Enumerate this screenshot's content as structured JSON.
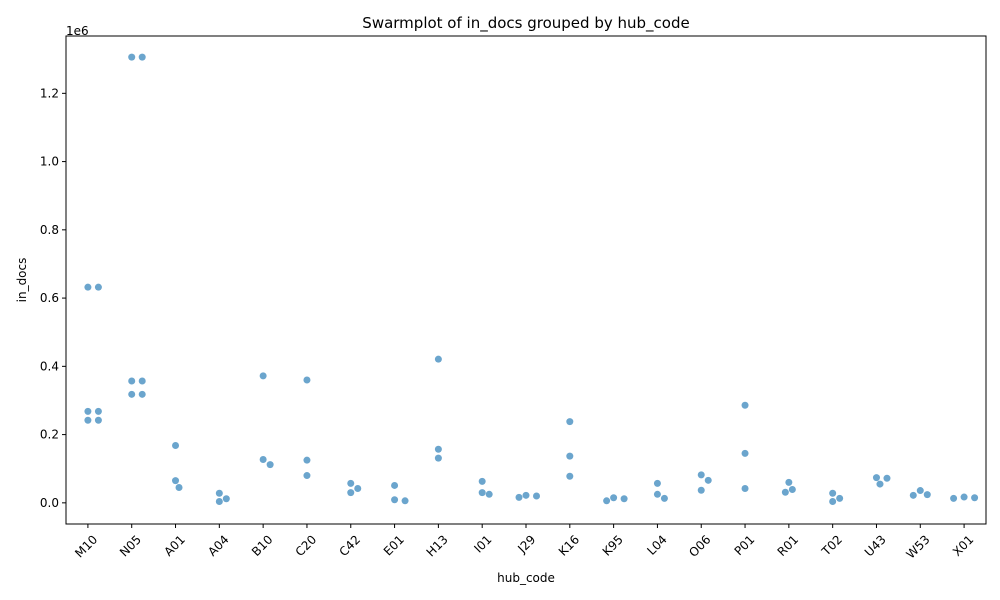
{
  "chart_data": {
    "type": "scatter",
    "subtype": "swarm",
    "title": "Swarmplot of in_docs grouped by hub_code",
    "xlabel": "hub_code",
    "ylabel": "in_docs",
    "y_offset_label": "1e6",
    "y_tick_labels": [
      "0.0",
      "0.2",
      "0.4",
      "0.6",
      "0.8",
      "1.0",
      "1.2"
    ],
    "y_ticks": [
      0,
      200000,
      400000,
      600000,
      800000,
      1000000,
      1200000
    ],
    "ylim": [
      -62000,
      1368000
    ],
    "grid": false,
    "color": "#5b9bc8",
    "categories": [
      "M10",
      "N05",
      "A01",
      "A04",
      "B10",
      "C20",
      "C42",
      "E01",
      "H13",
      "I01",
      "J29",
      "K16",
      "K95",
      "L04",
      "O06",
      "P01",
      "R01",
      "T02",
      "U43",
      "W53",
      "X01"
    ],
    "groups": [
      {
        "category": "M10",
        "values": [
          632000,
          632000,
          268000,
          268000,
          242000,
          242000
        ]
      },
      {
        "category": "N05",
        "values": [
          1306000,
          1306000,
          357000,
          357000,
          318000,
          318000
        ]
      },
      {
        "category": "A01",
        "values": [
          168000,
          65000,
          45000
        ]
      },
      {
        "category": "A04",
        "values": [
          28000,
          12000,
          4000
        ]
      },
      {
        "category": "B10",
        "values": [
          372000,
          127000,
          112000
        ]
      },
      {
        "category": "C20",
        "values": [
          360000,
          125000,
          80000
        ]
      },
      {
        "category": "C42",
        "values": [
          57000,
          42000,
          30000
        ]
      },
      {
        "category": "E01",
        "values": [
          51000,
          9000,
          6000
        ]
      },
      {
        "category": "H13",
        "values": [
          421000,
          157000,
          131000
        ]
      },
      {
        "category": "I01",
        "values": [
          63000,
          30000,
          25000
        ]
      },
      {
        "category": "J29",
        "values": [
          22000,
          20000,
          16000
        ]
      },
      {
        "category": "K16",
        "values": [
          238000,
          137000,
          78000
        ]
      },
      {
        "category": "K95",
        "values": [
          15000,
          12000,
          6000
        ]
      },
      {
        "category": "L04",
        "values": [
          57000,
          25000,
          13000
        ]
      },
      {
        "category": "O06",
        "values": [
          82000,
          66000,
          37000
        ]
      },
      {
        "category": "P01",
        "values": [
          286000,
          145000,
          42000
        ]
      },
      {
        "category": "R01",
        "values": [
          60000,
          39000,
          31000
        ]
      },
      {
        "category": "T02",
        "values": [
          28000,
          13000,
          4000
        ]
      },
      {
        "category": "U43",
        "values": [
          74000,
          72000,
          55000
        ]
      },
      {
        "category": "W53",
        "values": [
          36000,
          24000,
          22000
        ]
      },
      {
        "category": "X01",
        "values": [
          17000,
          15000,
          13000
        ]
      }
    ]
  }
}
